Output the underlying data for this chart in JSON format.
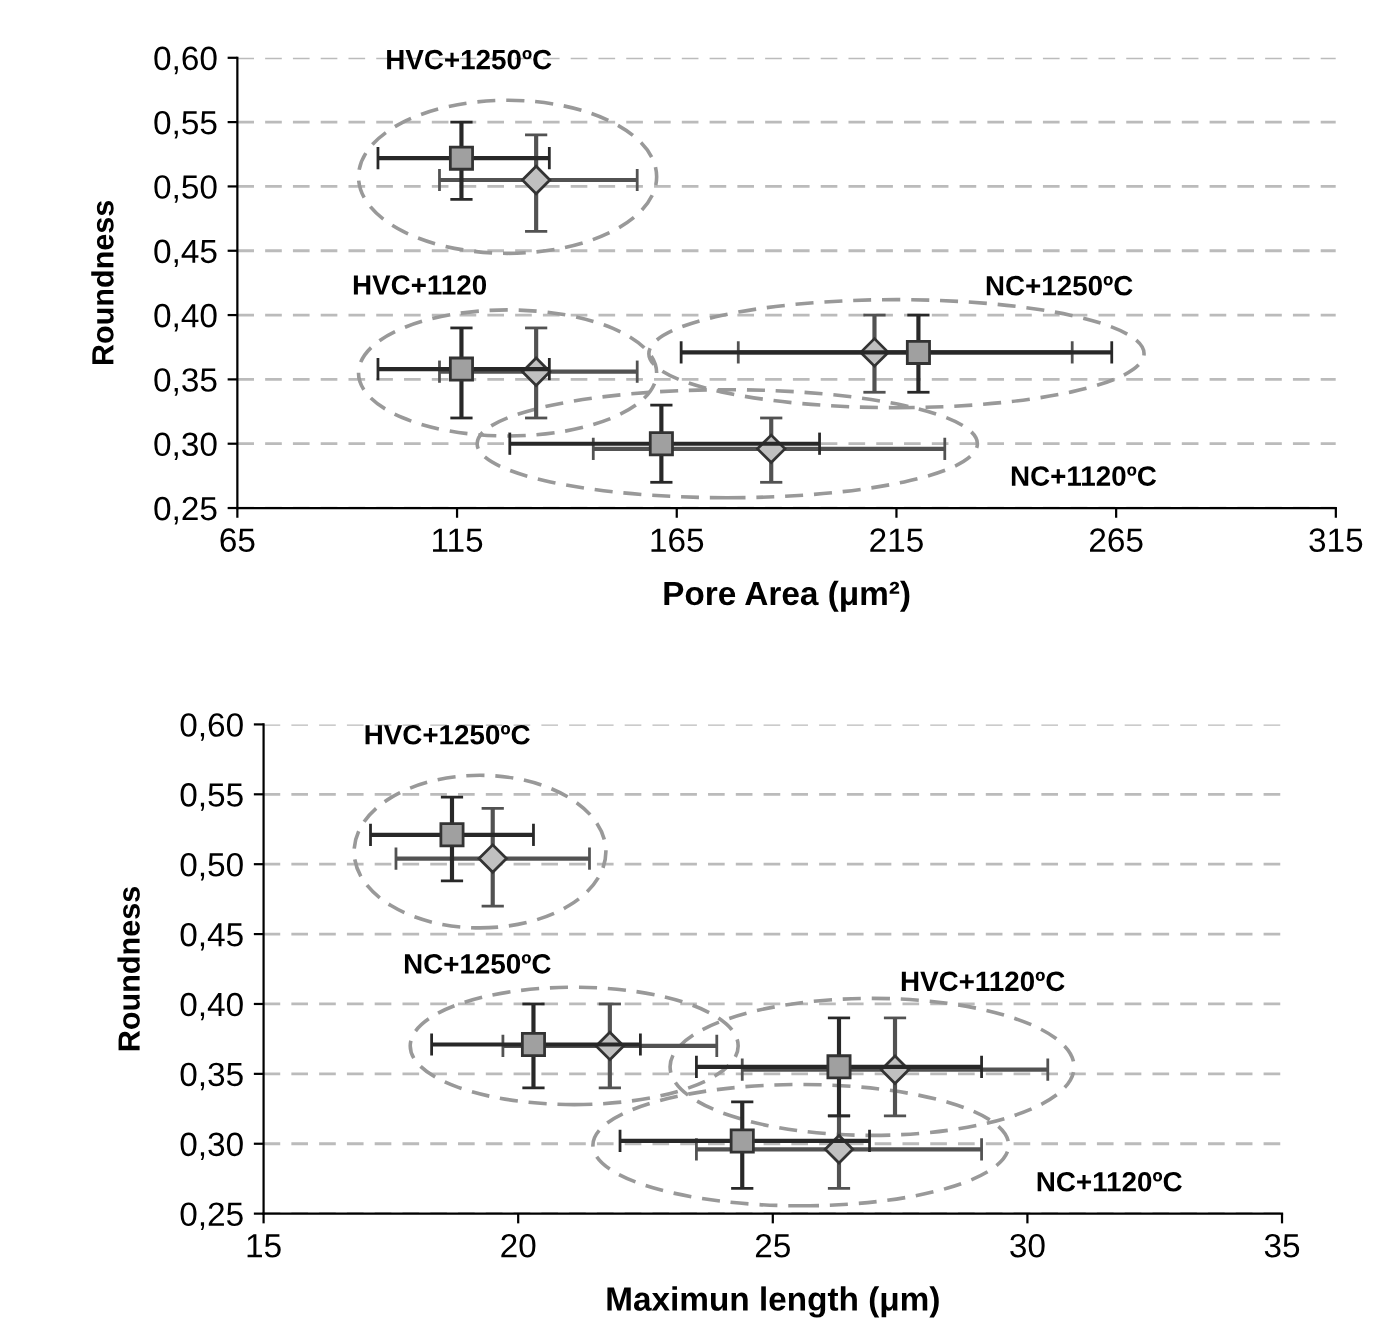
{
  "chart_data": [
    {
      "type": "scatter",
      "xlabel": "Pore Area (μm²)",
      "ylabel": "Roundness",
      "xlim": [
        65,
        315
      ],
      "xticks": [
        65,
        115,
        165,
        215,
        265,
        315
      ],
      "ylim": [
        0.25,
        0.6
      ],
      "yticks": [
        {
          "value": 0.25,
          "label": "0,25"
        },
        {
          "value": 0.3,
          "label": "0,30"
        },
        {
          "value": 0.35,
          "label": "0,35"
        },
        {
          "value": 0.4,
          "label": "0,40"
        },
        {
          "value": 0.45,
          "label": "0,45"
        },
        {
          "value": 0.5,
          "label": "0,50"
        },
        {
          "value": 0.55,
          "label": "0,55"
        },
        {
          "value": 0.6,
          "label": "0,60"
        }
      ],
      "grid": "y",
      "series": [
        {
          "color": "#c0c0c0",
          "marker": "diamond",
          "x": [
            133,
            133,
            210,
            186.5
          ],
          "values": [
            0.505,
            0.356,
            0.371,
            0.296
          ],
          "xerrors": [
            [
              111,
              156
            ],
            [
              111,
              156
            ],
            [
              179,
              255
            ],
            [
              146,
              226
            ]
          ],
          "errors": [
            [
              0.465,
              0.54
            ],
            [
              0.32,
              0.39
            ],
            [
              0.34,
              0.4
            ],
            [
              0.27,
              0.32
            ]
          ]
        },
        {
          "color": "#a0a0a0",
          "marker": "square",
          "x": [
            116,
            116,
            220,
            161.5
          ],
          "values": [
            0.522,
            0.358,
            0.371,
            0.3
          ],
          "xerrors": [
            [
              97,
              136
            ],
            [
              97,
              136
            ],
            [
              166,
              264
            ],
            [
              127,
              197.5
            ]
          ],
          "errors": [
            [
              0.49,
              0.55
            ],
            [
              0.32,
              0.39
            ],
            [
              0.34,
              0.4
            ],
            [
              0.27,
              0.33
            ]
          ]
        }
      ],
      "annotations": [
        "HVC+1250ºC",
        "HVC+1120",
        "NC+1250ºC",
        "NC+1120ºC"
      ]
    },
    {
      "type": "scatter",
      "xlabel": "Maximun length (μm)",
      "ylabel": "Roundness",
      "xlim": [
        15,
        35
      ],
      "xticks": [
        15,
        20,
        25,
        30,
        35
      ],
      "ylim": [
        0.25,
        0.6
      ],
      "yticks": [
        {
          "value": 0.25,
          "label": "0,25"
        },
        {
          "value": 0.3,
          "label": "0,30"
        },
        {
          "value": 0.35,
          "label": "0,35"
        },
        {
          "value": 0.4,
          "label": "0,40"
        },
        {
          "value": 0.45,
          "label": "0,45"
        },
        {
          "value": 0.5,
          "label": "0,50"
        },
        {
          "value": 0.55,
          "label": "0,55"
        },
        {
          "value": 0.6,
          "label": "0,60"
        }
      ],
      "grid": "y",
      "series": [
        {
          "color": "#c0c0c0",
          "marker": "diamond",
          "x": [
            19.5,
            21.8,
            27.4,
            26.3
          ],
          "values": [
            0.504,
            0.37,
            0.353,
            0.296
          ],
          "xerrors": [
            [
              17.6,
              21.4
            ],
            [
              19.7,
              23.9
            ],
            [
              24.4,
              30.4
            ],
            [
              23.5,
              29.1
            ]
          ],
          "errors": [
            [
              0.47,
              0.54
            ],
            [
              0.34,
              0.4
            ],
            [
              0.32,
              0.39
            ],
            [
              0.268,
              0.32
            ]
          ]
        },
        {
          "color": "#a0a0a0",
          "marker": "square",
          "x": [
            18.7,
            20.3,
            26.3,
            24.4
          ],
          "values": [
            0.521,
            0.371,
            0.355,
            0.302
          ],
          "xerrors": [
            [
              17.1,
              20.3
            ],
            [
              18.3,
              22.4
            ],
            [
              23.5,
              29.1
            ],
            [
              22,
              26.9
            ]
          ],
          "errors": [
            [
              0.488,
              0.548
            ],
            [
              0.34,
              0.4
            ],
            [
              0.32,
              0.39
            ],
            [
              0.268,
              0.33
            ]
          ]
        }
      ],
      "annotations": [
        "HVC+1250ºC",
        "NC+1250ºC",
        "HVC+1120ºC",
        "NC+1120ºC"
      ]
    }
  ]
}
